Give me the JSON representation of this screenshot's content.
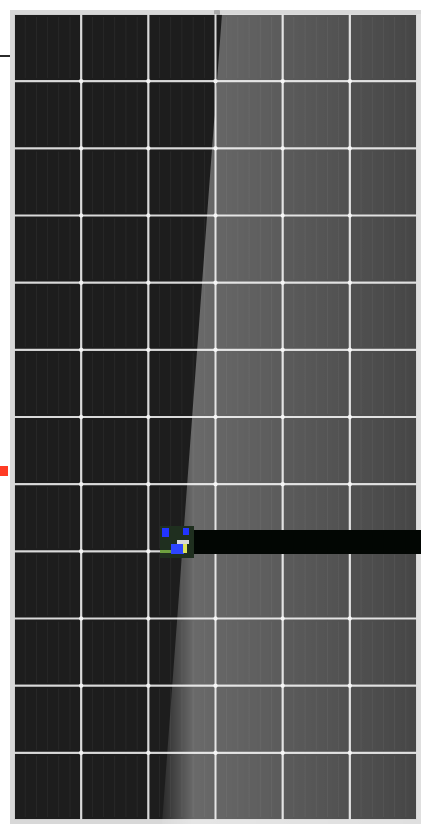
{
  "image": {
    "subject": "solar-panel",
    "colors": {
      "background": "#ffffff",
      "frame": "#d8d8d8",
      "cell": "#1d1d1d",
      "grid_line": "#d9d9d9",
      "busbar_dot": "#f2f2f2",
      "glare": "#ffffff",
      "accent_red": "#ff3b24",
      "junction_box": "#020603"
    },
    "panel": {
      "columns": 6,
      "rows": 12
    }
  }
}
